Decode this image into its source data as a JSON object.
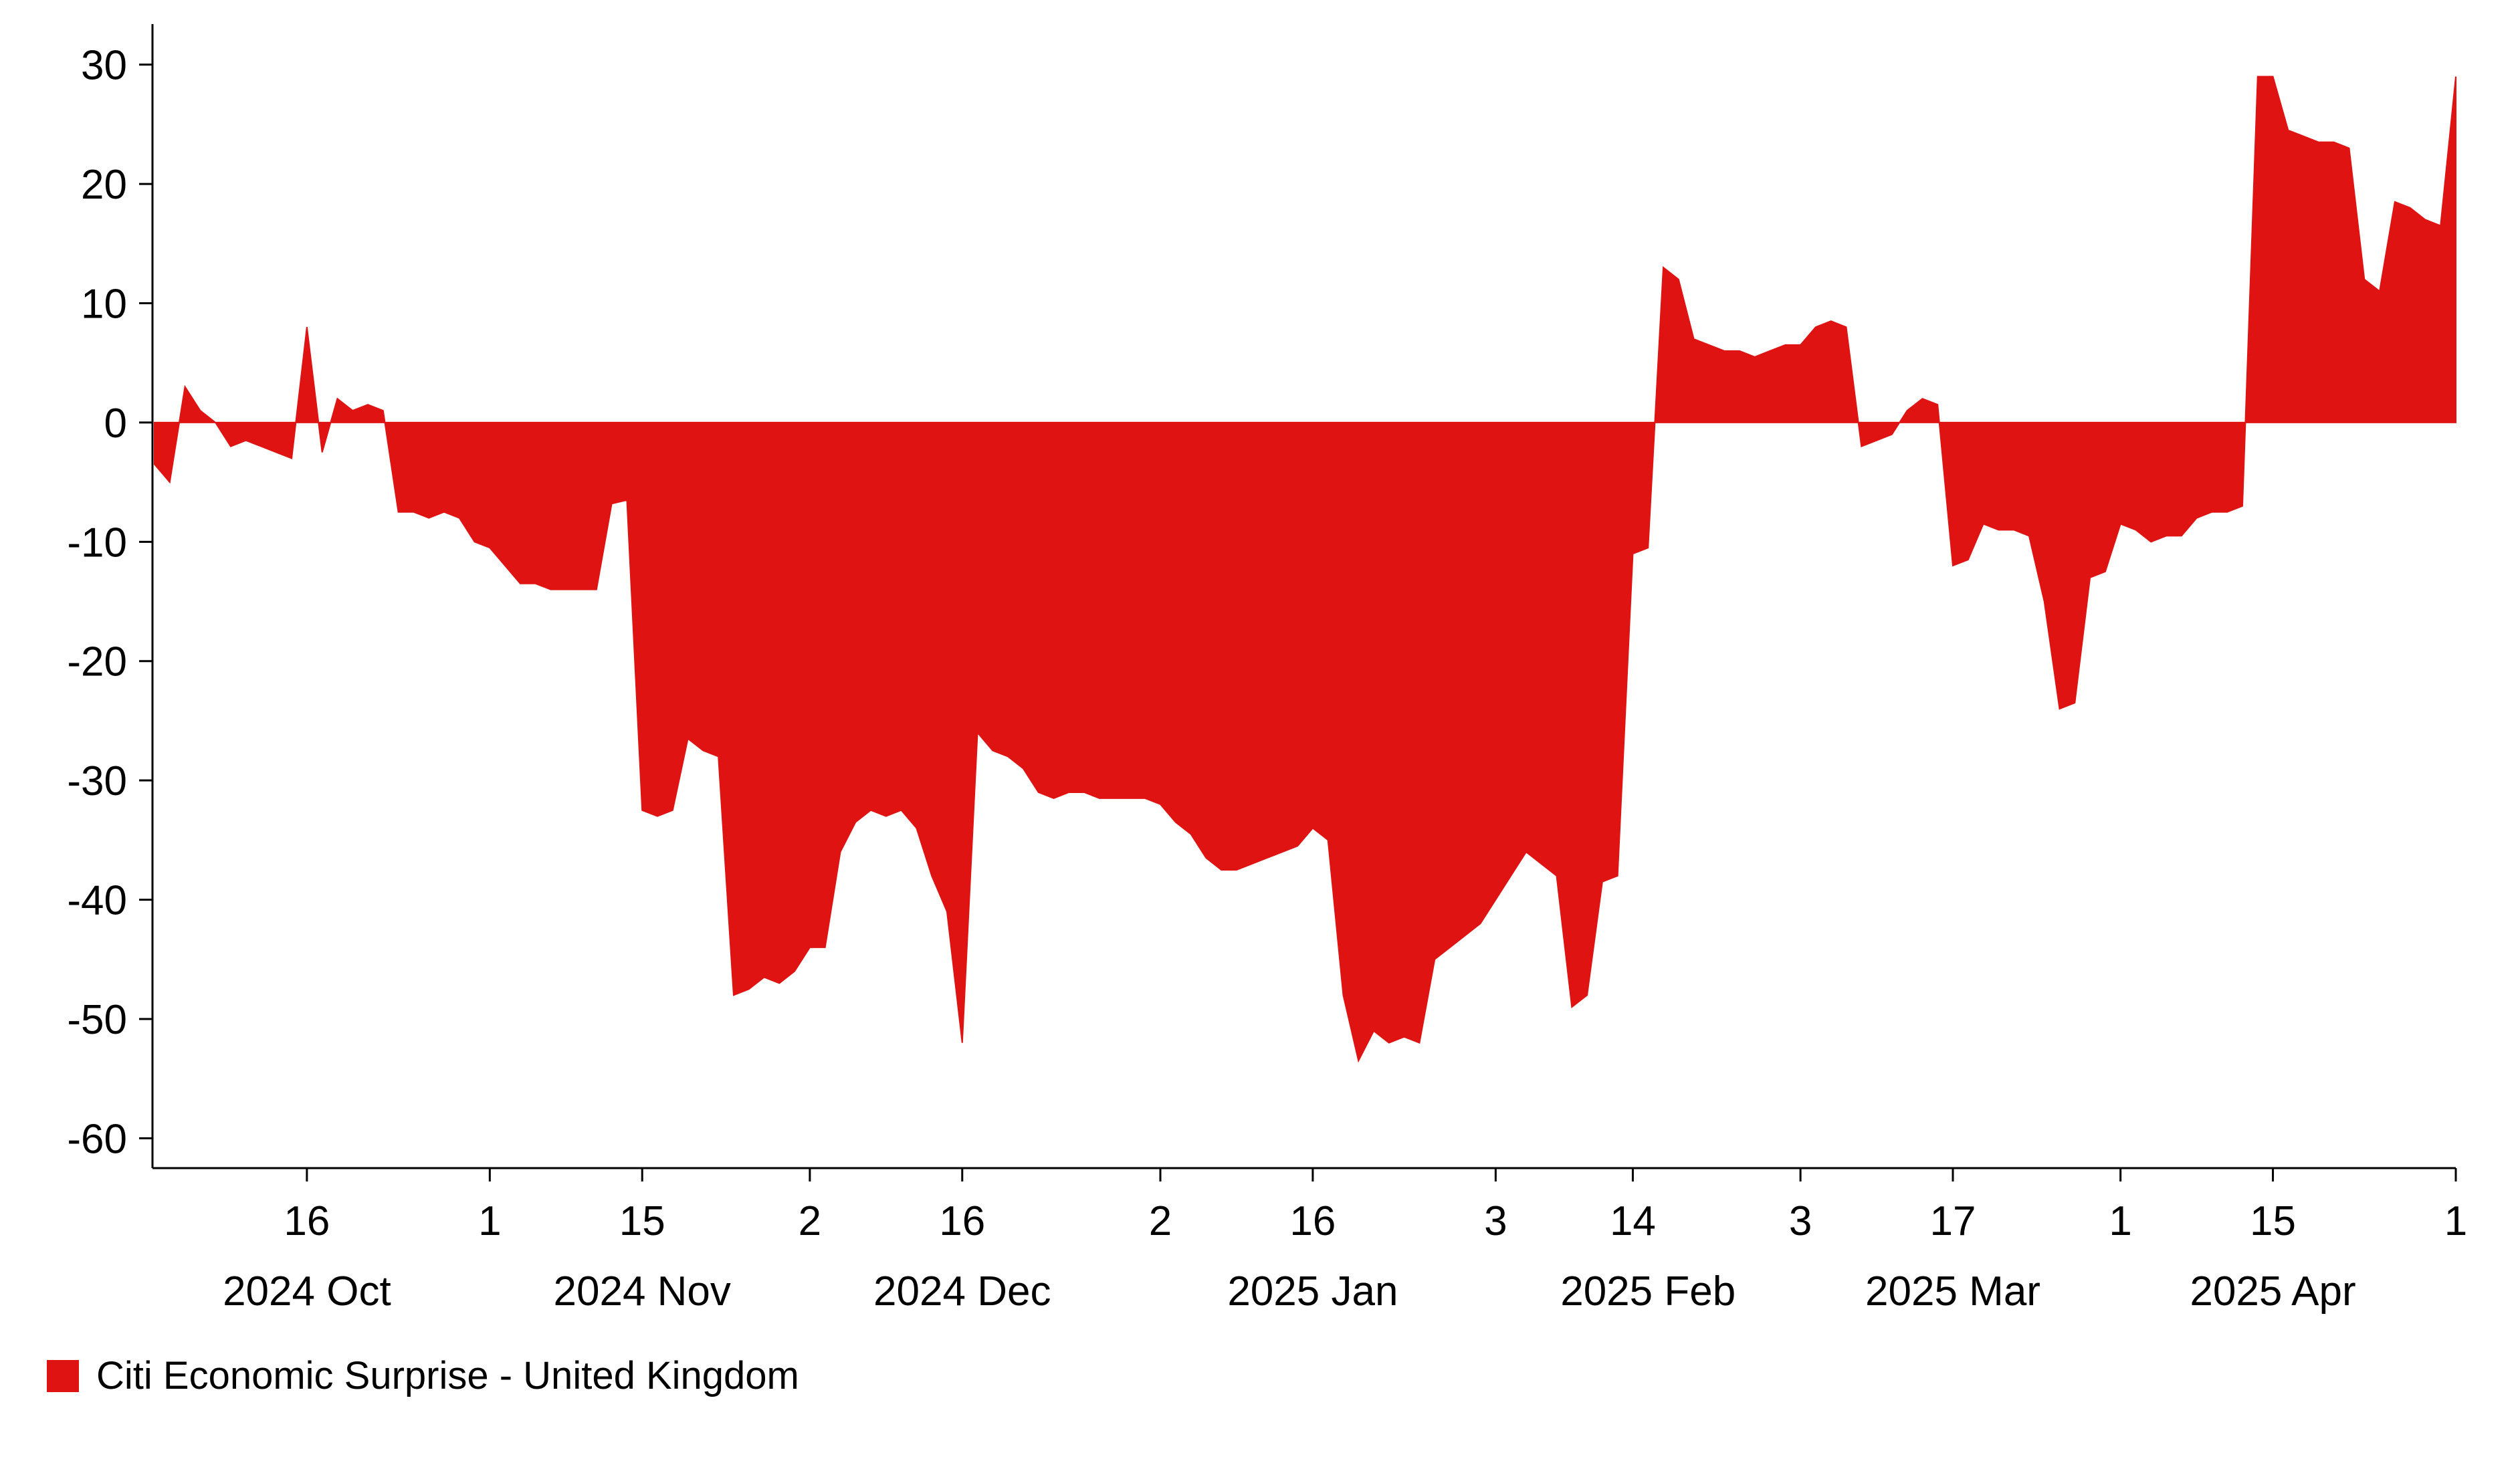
{
  "page": {
    "background": "#ffffff",
    "text_color": "#000000"
  },
  "legend": {
    "label": "Citi Economic Surprise - United Kingdom",
    "swatch_color": "#e01313"
  },
  "chart_data": {
    "type": "area",
    "series_name": "Citi Economic Surprise - United Kingdom",
    "fill_color": "#e01313",
    "axis_color": "#000000",
    "grid": false,
    "legend_position": "bottom-left",
    "baseline": 0,
    "ylim": [
      -62.5,
      33.4
    ],
    "y_ticks": [
      30,
      20,
      10,
      0,
      -10,
      -20,
      -30,
      -40,
      -50,
      -60
    ],
    "x_ticks": [
      {
        "date": "2024-10-16",
        "label": "16"
      },
      {
        "date": "2024-11-01",
        "label": "1"
      },
      {
        "date": "2024-11-15",
        "label": "15"
      },
      {
        "date": "2024-12-02",
        "label": "2"
      },
      {
        "date": "2024-12-16",
        "label": "16"
      },
      {
        "date": "2025-01-02",
        "label": "2"
      },
      {
        "date": "2025-01-16",
        "label": "16"
      },
      {
        "date": "2025-02-03",
        "label": "3"
      },
      {
        "date": "2025-02-14",
        "label": "14"
      },
      {
        "date": "2025-03-03",
        "label": "3"
      },
      {
        "date": "2025-03-17",
        "label": "17"
      },
      {
        "date": "2025-04-01",
        "label": "1"
      },
      {
        "date": "2025-04-15",
        "label": "15"
      },
      {
        "date": "2025-05-01",
        "label": "1"
      }
    ],
    "month_labels": [
      {
        "date": "2024-10-16",
        "label": "2024 Oct"
      },
      {
        "date": "2024-11-15",
        "label": "2024 Nov"
      },
      {
        "date": "2024-12-16",
        "label": "2024 Dec"
      },
      {
        "date": "2025-01-16",
        "label": "2025 Jan"
      },
      {
        "date": "2025-02-17",
        "label": "2025 Feb"
      },
      {
        "date": "2025-03-17",
        "label": "2025 Mar"
      },
      {
        "date": "2025-04-15",
        "label": "2025 Apr"
      }
    ],
    "dates": [
      "2024-10-02",
      "2024-10-03",
      "2024-10-04",
      "2024-10-07",
      "2024-10-08",
      "2024-10-09",
      "2024-10-10",
      "2024-10-11",
      "2024-10-14",
      "2024-10-15",
      "2024-10-16",
      "2024-10-17",
      "2024-10-18",
      "2024-10-21",
      "2024-10-22",
      "2024-10-23",
      "2024-10-24",
      "2024-10-25",
      "2024-10-28",
      "2024-10-29",
      "2024-10-30",
      "2024-10-31",
      "2024-11-01",
      "2024-11-04",
      "2024-11-05",
      "2024-11-06",
      "2024-11-07",
      "2024-11-08",
      "2024-11-11",
      "2024-11-12",
      "2024-11-13",
      "2024-11-14",
      "2024-11-15",
      "2024-11-18",
      "2024-11-19",
      "2024-11-20",
      "2024-11-21",
      "2024-11-22",
      "2024-11-25",
      "2024-11-26",
      "2024-11-27",
      "2024-11-28",
      "2024-11-29",
      "2024-12-02",
      "2024-12-03",
      "2024-12-04",
      "2024-12-05",
      "2024-12-06",
      "2024-12-09",
      "2024-12-10",
      "2024-12-11",
      "2024-12-12",
      "2024-12-13",
      "2024-12-16",
      "2024-12-17",
      "2024-12-18",
      "2024-12-19",
      "2024-12-20",
      "2024-12-23",
      "2024-12-24",
      "2024-12-25",
      "2024-12-26",
      "2024-12-27",
      "2024-12-30",
      "2024-12-31",
      "2025-01-01",
      "2025-01-02",
      "2025-01-03",
      "2025-01-06",
      "2025-01-07",
      "2025-01-08",
      "2025-01-09",
      "2025-01-10",
      "2025-01-13",
      "2025-01-14",
      "2025-01-15",
      "2025-01-16",
      "2025-01-17",
      "2025-01-20",
      "2025-01-21",
      "2025-01-22",
      "2025-01-23",
      "2025-01-24",
      "2025-01-27",
      "2025-01-28",
      "2025-01-29",
      "2025-01-30",
      "2025-01-31",
      "2025-02-03",
      "2025-02-04",
      "2025-02-05",
      "2025-02-06",
      "2025-02-07",
      "2025-02-10",
      "2025-02-11",
      "2025-02-12",
      "2025-02-13",
      "2025-02-14",
      "2025-02-17",
      "2025-02-18",
      "2025-02-19",
      "2025-02-20",
      "2025-02-21",
      "2025-02-24",
      "2025-02-25",
      "2025-02-26",
      "2025-02-27",
      "2025-02-28",
      "2025-03-03",
      "2025-03-04",
      "2025-03-05",
      "2025-03-06",
      "2025-03-07",
      "2025-03-10",
      "2025-03-11",
      "2025-03-12",
      "2025-03-13",
      "2025-03-14",
      "2025-03-17",
      "2025-03-18",
      "2025-03-19",
      "2025-03-20",
      "2025-03-21",
      "2025-03-24",
      "2025-03-25",
      "2025-03-26",
      "2025-03-27",
      "2025-03-28",
      "2025-03-31",
      "2025-04-01",
      "2025-04-02",
      "2025-04-03",
      "2025-04-04",
      "2025-04-07",
      "2025-04-08",
      "2025-04-09",
      "2025-04-10",
      "2025-04-11",
      "2025-04-14",
      "2025-04-15",
      "2025-04-16",
      "2025-04-17",
      "2025-04-18",
      "2025-04-21",
      "2025-04-22",
      "2025-04-23",
      "2025-04-24",
      "2025-04-25",
      "2025-04-28",
      "2025-04-29",
      "2025-04-30",
      "2025-05-01"
    ],
    "values": [
      -3.5,
      -5,
      3,
      1,
      0,
      -2,
      -1.5,
      -2,
      -2.5,
      -3,
      8,
      -2.5,
      2,
      1,
      1.5,
      1,
      -7.5,
      -7.5,
      -8,
      -7.5,
      -8,
      -10,
      -10.5,
      -12,
      -13.5,
      -13.5,
      -14,
      -14,
      -14,
      -14,
      -6.8,
      -6.5,
      -32.5,
      -33,
      -32.5,
      -26.5,
      -27.5,
      -28,
      -48,
      -47.5,
      -46.5,
      -47,
      -46,
      -44,
      -44,
      -36,
      -33.5,
      -32.5,
      -33,
      -32.5,
      -34,
      -38,
      -41,
      -52,
      -26,
      -27.5,
      -28,
      -29,
      -31,
      -31.5,
      -31,
      -31,
      -31.5,
      -31.5,
      -31.5,
      -31.5,
      -32,
      -33.5,
      -34.5,
      -36.5,
      -37.5,
      -37.5,
      -37,
      -36.5,
      -36,
      -35.5,
      -34,
      -35,
      -48,
      -53.5,
      -51,
      -52,
      -51.5,
      -52,
      -45,
      -44,
      -43,
      -42,
      -40,
      -38,
      -36,
      -37,
      -38,
      -49,
      -48,
      -38.5,
      -38,
      -11,
      -10.5,
      13,
      12,
      7,
      6.5,
      6,
      6,
      5.5,
      6,
      6.5,
      6.5,
      8,
      8.5,
      8,
      -2,
      -1.5,
      -1,
      1,
      2,
      1.5,
      -12,
      -11.5,
      -8.5,
      -9,
      -9,
      -9.5,
      -15,
      -24,
      -23.5,
      -13,
      -12.5,
      -8.5,
      -9,
      -10,
      -9.5,
      -9.5,
      -8,
      -7.5,
      -7.5,
      -7,
      29,
      29,
      24.5,
      24,
      23.5,
      23.5,
      23,
      12,
      11,
      18.5,
      18,
      17,
      16.5,
      29
    ]
  }
}
